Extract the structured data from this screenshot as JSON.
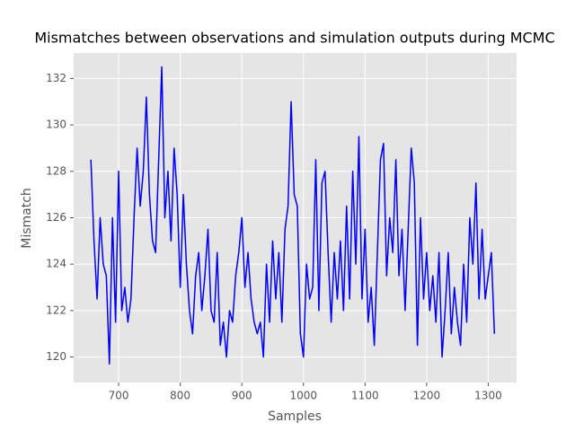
{
  "chart_data": {
    "type": "line",
    "title": "Mismatches between observations and simulation outputs during MCMC",
    "x_label": "Samples",
    "y_label": "Mismatch",
    "xlim": [
      627,
      1346
    ],
    "ylim": [
      118.9,
      133.1
    ],
    "xticks": [
      700,
      800,
      900,
      1000,
      1100,
      1200,
      1300
    ],
    "yticks": [
      120,
      122,
      124,
      126,
      128,
      130,
      132
    ],
    "grid": true,
    "x": [
      655,
      660,
      665,
      670,
      675,
      680,
      685,
      690,
      695,
      700,
      705,
      710,
      715,
      720,
      725,
      730,
      735,
      740,
      745,
      750,
      755,
      760,
      765,
      770,
      775,
      780,
      785,
      790,
      795,
      800,
      805,
      810,
      815,
      820,
      825,
      830,
      835,
      840,
      845,
      850,
      855,
      860,
      865,
      870,
      875,
      880,
      885,
      890,
      895,
      900,
      905,
      910,
      915,
      920,
      925,
      930,
      935,
      940,
      945,
      950,
      955,
      960,
      965,
      970,
      975,
      980,
      985,
      990,
      995,
      1000,
      1005,
      1010,
      1015,
      1020,
      1025,
      1030,
      1035,
      1040,
      1045,
      1050,
      1055,
      1060,
      1065,
      1070,
      1075,
      1080,
      1085,
      1090,
      1095,
      1100,
      1105,
      1110,
      1115,
      1120,
      1125,
      1130,
      1135,
      1140,
      1145,
      1150,
      1155,
      1160,
      1165,
      1170,
      1175,
      1180,
      1185,
      1190,
      1195,
      1200,
      1205,
      1210,
      1215,
      1220,
      1225,
      1230,
      1235,
      1240,
      1245,
      1250,
      1255,
      1260,
      1265,
      1270,
      1275,
      1280,
      1285,
      1290,
      1295,
      1300,
      1305,
      1310
    ],
    "series": [
      {
        "name": "Mismatch",
        "color": "#0000ff",
        "values": [
          128.5,
          125,
          122.5,
          126,
          124,
          123.5,
          119.7,
          126,
          121.5,
          128,
          122,
          123,
          121.5,
          122.5,
          126,
          129,
          126.5,
          128,
          131.2,
          127,
          125,
          124.5,
          128.5,
          132.5,
          126,
          128,
          125,
          129,
          127,
          123,
          127,
          124,
          122,
          121,
          123.5,
          124.5,
          122,
          123.5,
          125.5,
          122,
          121.5,
          124.5,
          120.5,
          121.5,
          120,
          122,
          121.5,
          123.5,
          124.5,
          126,
          123,
          124.5,
          122.5,
          121.5,
          121,
          121.5,
          120,
          124,
          121.5,
          125,
          122.5,
          124.5,
          121.5,
          125.5,
          126.5,
          131,
          127,
          126.5,
          121,
          120,
          124,
          122.5,
          123,
          128.5,
          122,
          127.5,
          128,
          124.5,
          121.5,
          124.5,
          122.5,
          125,
          122,
          126.5,
          122.5,
          128,
          124,
          129.5,
          122.5,
          125.5,
          121.5,
          123,
          120.5,
          124.5,
          128.5,
          129.2,
          123.5,
          126,
          124.5,
          128.5,
          123.5,
          125.5,
          122,
          125.5,
          129,
          127.5,
          120.5,
          126,
          122.5,
          124.5,
          122,
          123.5,
          121.5,
          124.5,
          120,
          122,
          124.5,
          121,
          123,
          121.5,
          120.5,
          124,
          121.5,
          126,
          124,
          127.5,
          122.5,
          125.5,
          122.5,
          123.5,
          124.5,
          121
        ]
      }
    ]
  }
}
